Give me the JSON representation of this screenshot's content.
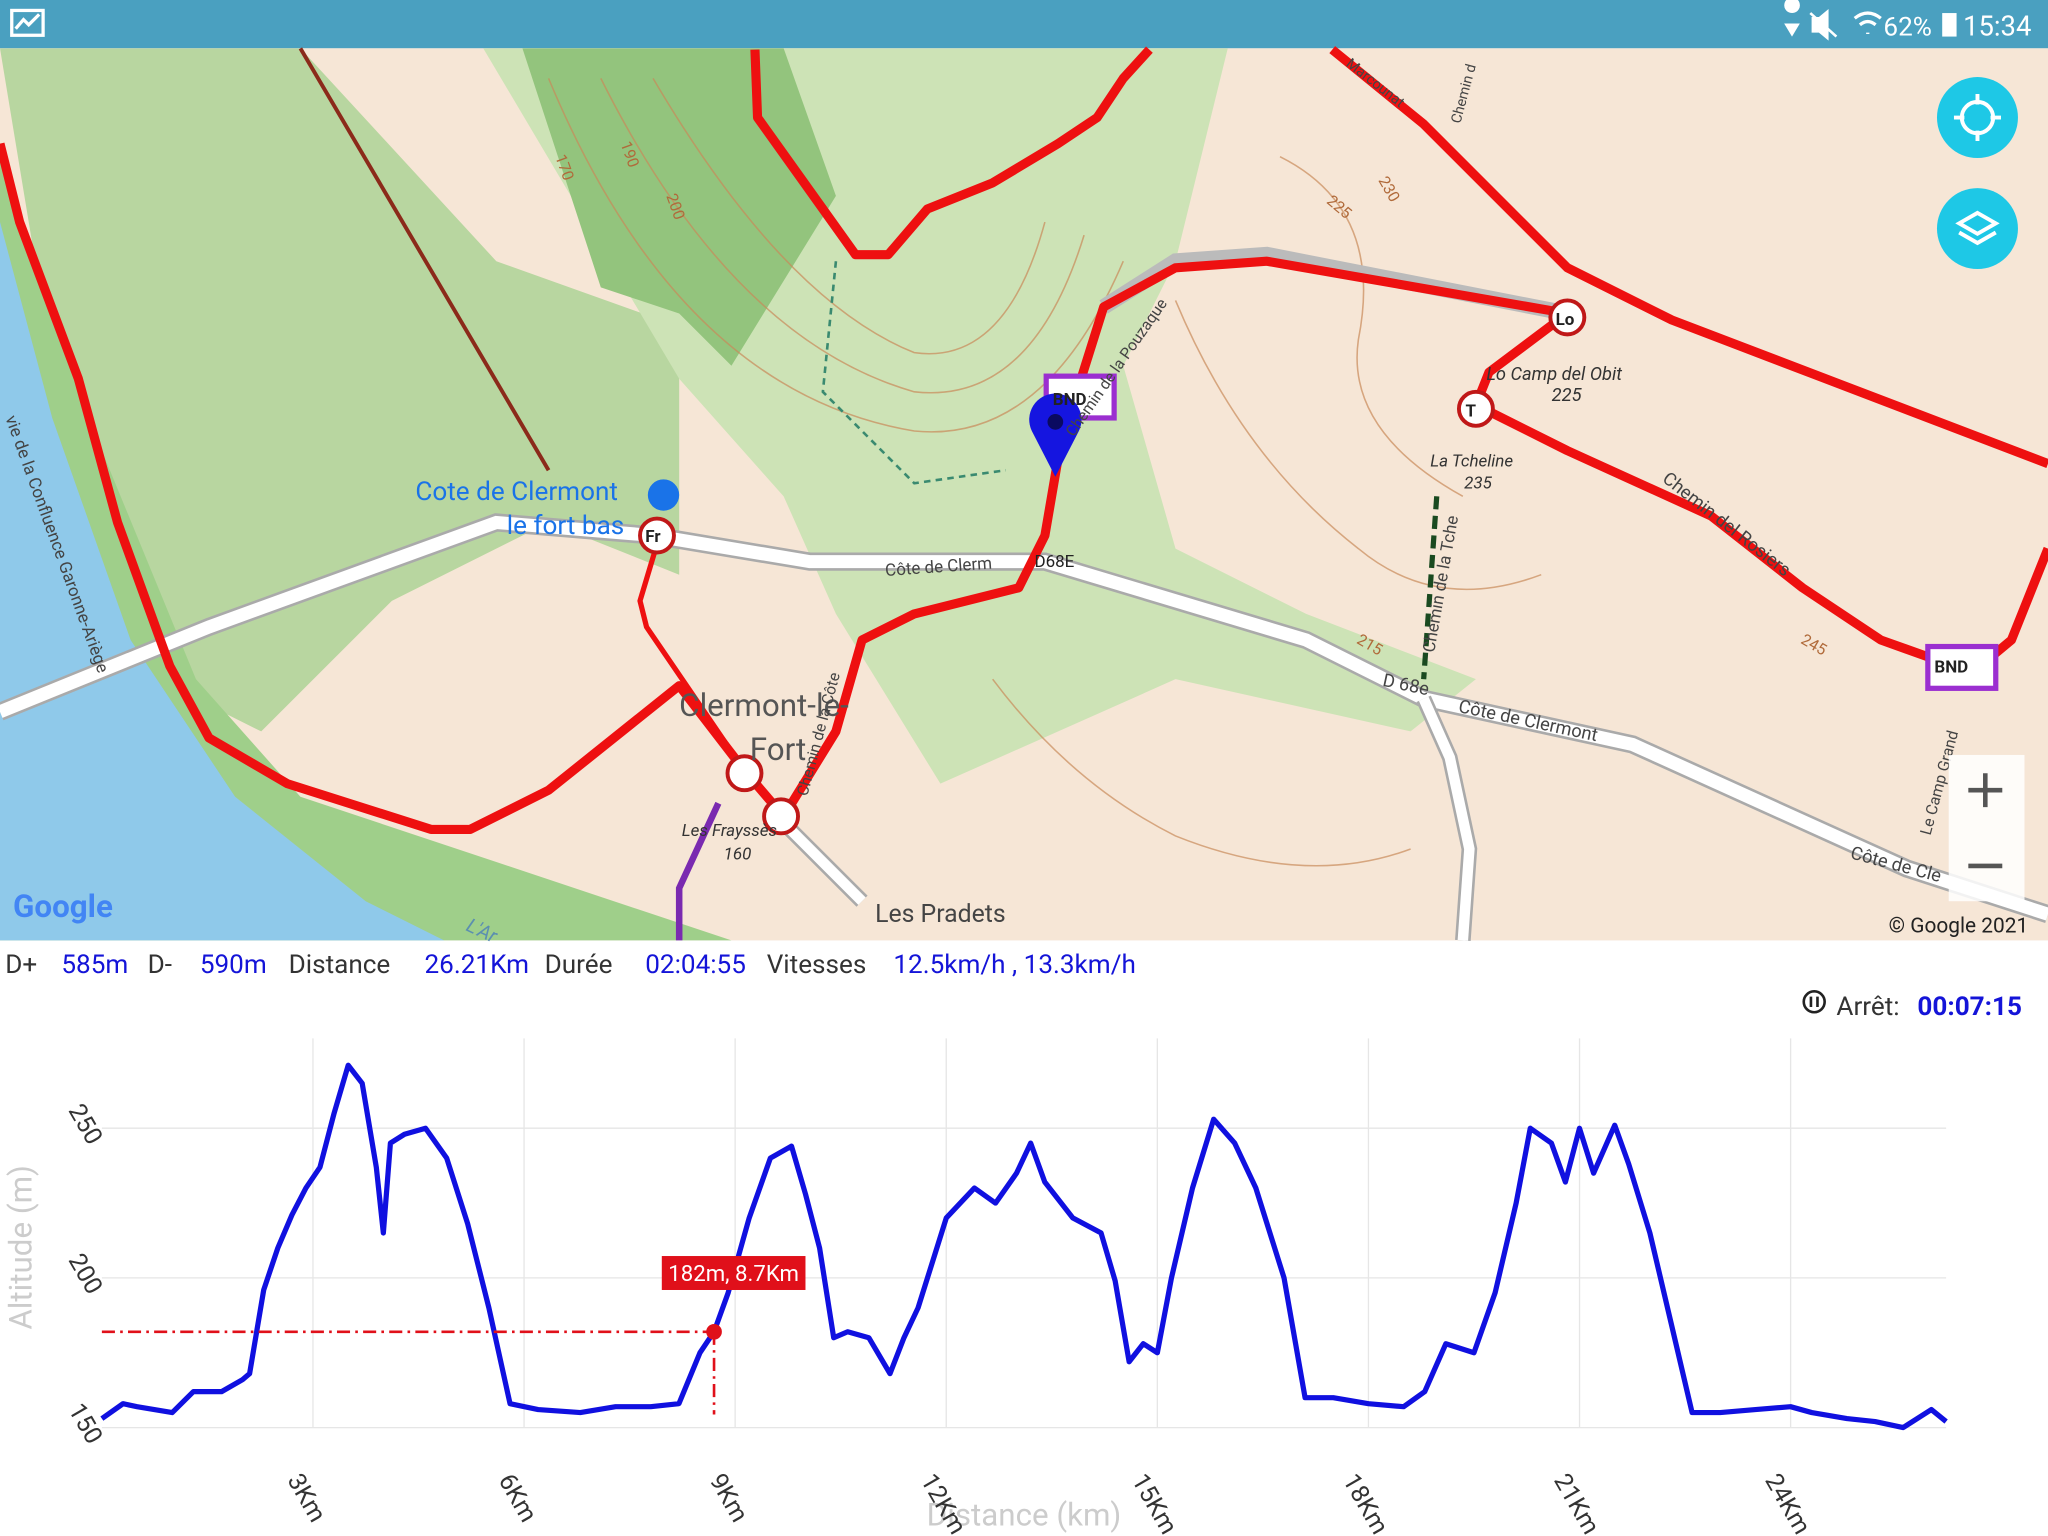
{
  "status_bar": {
    "battery": "62%",
    "time": "15:34"
  },
  "map": {
    "labels": [
      "Cote de Clermont",
      "le fort bas",
      "Clermont-le-",
      "Fort",
      "Les Frayssès",
      "160",
      "La Tcheline",
      "235",
      "Lo Camp del Obit",
      "225",
      "Chemin del Rosiers",
      "Côte de Clermont",
      "D 68e",
      "Côte de Clerm",
      "D68E",
      "Chemin de la Côte",
      "Chemin de la Pouzaque",
      "Les Pradets",
      "Le Camp Grand",
      "Côte de Cle",
      "Chemin de la Tche",
      "Marcounat",
      "Chemin d",
      "L'Ar",
      "vie de la Confluence Garonne-Ariège",
      "170",
      "190",
      "200",
      "225",
      "230",
      "215",
      "245",
      "Fr",
      "Lo",
      "T",
      "BND",
      "BND"
    ],
    "attribution": "Google",
    "copyright": "© Google 2021"
  },
  "stats": {
    "d_plus_label": "D+",
    "d_plus": "585m",
    "d_minus_label": "D-",
    "d_minus": "590m",
    "distance_label": "Distance",
    "distance": "26.21Km",
    "duration_label": "Durée",
    "duration": "02:04:55",
    "speeds_label": "Vitesses",
    "speeds": "12.5km/h , 13.3km/h",
    "stop_label": "Arrêt:",
    "stop": "00:07:15"
  },
  "elevation_chart": {
    "type": "line",
    "x_label": "Distance (km)",
    "y_label": "Altitude (m)",
    "color": "#1010e0",
    "x": [
      0,
      0.3,
      0.5,
      1,
      1.3,
      1.7,
      2,
      2.1,
      2.3,
      2.5,
      2.7,
      2.9,
      3.1,
      3.3,
      3.5,
      3.7,
      3.9,
      4.0,
      4.1,
      4.3,
      4.6,
      4.9,
      5.2,
      5.5,
      5.8,
      6.2,
      6.8,
      7.3,
      7.8,
      8.2,
      8.5,
      8.7,
      8.9,
      9.2,
      9.5,
      9.8,
      10.0,
      10.2,
      10.4,
      10.6,
      10.9,
      11.2,
      11.4,
      11.6,
      12.0,
      12.4,
      12.7,
      13.0,
      13.2,
      13.4,
      13.8,
      14.2,
      14.4,
      14.6,
      14.8,
      15.0,
      15.2,
      15.5,
      15.8,
      16.1,
      16.4,
      16.8,
      17.1,
      17.5,
      18.0,
      18.5,
      18.8,
      19.1,
      19.5,
      19.8,
      20.1,
      20.3,
      20.6,
      20.8,
      21.0,
      21.2,
      21.5,
      21.7,
      22.0,
      22.3,
      22.6,
      23.0,
      23.5,
      24.0,
      24.3,
      24.8,
      25.2,
      25.6,
      26.0,
      26.21
    ],
    "values": [
      153,
      158,
      157,
      155,
      162,
      162,
      166,
      168,
      196,
      210,
      221,
      230,
      237,
      255,
      271,
      265,
      237,
      215,
      245,
      248,
      250,
      240,
      218,
      190,
      158,
      156,
      155,
      157,
      157,
      158,
      175,
      182,
      195,
      220,
      240,
      244,
      228,
      210,
      180,
      182,
      180,
      168,
      180,
      190,
      220,
      230,
      225,
      235,
      245,
      232,
      220,
      215,
      199,
      172,
      178,
      175,
      200,
      230,
      253,
      245,
      230,
      200,
      160,
      160,
      158,
      157,
      162,
      178,
      175,
      195,
      225,
      250,
      245,
      232,
      250,
      235,
      251,
      238,
      215,
      185,
      155,
      155,
      156,
      157,
      155,
      153,
      152,
      150,
      156,
      152
    ],
    "xlim": [
      0,
      26.21
    ],
    "ylim": [
      150,
      280
    ],
    "xticks": [
      {
        "value": 3,
        "label": "3Km"
      },
      {
        "value": 6,
        "label": "6Km"
      },
      {
        "value": 9,
        "label": "9Km"
      },
      {
        "value": 12,
        "label": "12Km"
      },
      {
        "value": 15,
        "label": "15Km"
      },
      {
        "value": 18,
        "label": "18Km"
      },
      {
        "value": 21,
        "label": "21Km"
      },
      {
        "value": 24,
        "label": "24Km"
      }
    ],
    "yticks": [
      150,
      200,
      250
    ],
    "grid": true,
    "cursor": {
      "x": 8.7,
      "y": 182,
      "label": "182m, 8.7Km",
      "color": "#e0101a"
    }
  }
}
